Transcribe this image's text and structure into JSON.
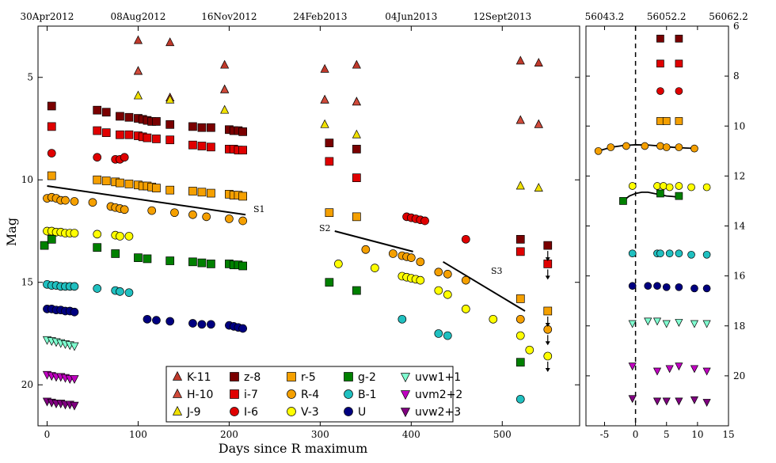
{
  "chart_data": [
    {
      "type": "scatter",
      "panel": "main",
      "title": "",
      "xlabel": "Days since R maximum",
      "ylabel": "Mag",
      "xlim": [
        -10,
        585
      ],
      "ylim": [
        22,
        2.5
      ],
      "y_inverted": true,
      "grid": false,
      "x_ticks": [
        0,
        100,
        200,
        300,
        400,
        500
      ],
      "y_ticks": [
        5,
        10,
        15,
        20
      ],
      "top_date_ticks": [
        {
          "x": 0,
          "label": "30Apr2012"
        },
        {
          "x": 100,
          "label": "08Aug2012"
        },
        {
          "x": 200,
          "label": "16Nov2012"
        },
        {
          "x": 300,
          "label": "24Feb2013"
        },
        {
          "x": 400,
          "label": "04Jun2013"
        },
        {
          "x": 500,
          "label": "12Sept2013"
        }
      ],
      "fit_lines": [
        {
          "name": "S1",
          "x": [
            0,
            218
          ],
          "y": [
            10.3,
            11.7
          ]
        },
        {
          "name": "S2",
          "x": [
            316,
            402
          ],
          "y": [
            12.5,
            13.5
          ]
        },
        {
          "name": "S3",
          "x": [
            435,
            525
          ],
          "y": [
            14.0,
            16.4
          ]
        }
      ],
      "series": [
        {
          "name": "K-11",
          "marker": "triangle-up",
          "color": "#c0392b",
          "x": [
            100,
            100,
            135,
            135,
            195,
            195,
            305,
            305,
            340,
            340,
            520,
            520,
            540,
            540
          ],
          "y": [
            3.2,
            4.7,
            3.3,
            6.0,
            4.4,
            5.6,
            4.6,
            6.1,
            4.4,
            6.2,
            4.2,
            7.1,
            4.3,
            7.3
          ]
        },
        {
          "name": "H-10",
          "marker": "triangle-up",
          "color": "#d04a3a",
          "x": [
            100,
            135,
            195,
            305,
            340,
            520,
            540
          ],
          "y": [
            4.7,
            6.0,
            5.6,
            6.1,
            6.2,
            7.1,
            7.3
          ]
        },
        {
          "name": "J-9",
          "marker": "triangle-up",
          "color": "#f0e000",
          "x": [
            100,
            135,
            195,
            305,
            340,
            520,
            540
          ],
          "y": [
            5.9,
            6.1,
            6.6,
            7.3,
            7.8,
            10.3,
            10.4
          ]
        },
        {
          "name": "z-8",
          "marker": "square",
          "color": "#7a0000",
          "x": [
            5,
            55,
            65,
            80,
            90,
            100,
            105,
            110,
            115,
            120,
            135,
            160,
            170,
            180,
            200,
            205,
            210,
            215,
            310,
            340,
            520,
            550
          ],
          "y": [
            6.4,
            6.6,
            6.7,
            6.9,
            6.95,
            7.0,
            7.05,
            7.1,
            7.15,
            7.15,
            7.3,
            7.4,
            7.45,
            7.45,
            7.55,
            7.6,
            7.6,
            7.65,
            8.2,
            8.5,
            12.9,
            13.2
          ]
        },
        {
          "name": "i-7",
          "marker": "square",
          "color": "#e00000",
          "x": [
            5,
            55,
            65,
            80,
            90,
            100,
            105,
            110,
            120,
            135,
            160,
            170,
            180,
            200,
            205,
            210,
            215,
            310,
            340,
            520,
            550
          ],
          "y": [
            7.4,
            7.6,
            7.7,
            7.8,
            7.8,
            7.85,
            7.9,
            7.95,
            8.0,
            8.05,
            8.3,
            8.35,
            8.4,
            8.5,
            8.5,
            8.55,
            8.55,
            9.1,
            9.9,
            13.5,
            14.1
          ]
        },
        {
          "name": "I-6",
          "marker": "circle",
          "color": "#e00000",
          "x": [
            5,
            55,
            75,
            80,
            85,
            395,
            400,
            405,
            410,
            415,
            460
          ],
          "y": [
            8.7,
            8.9,
            9.0,
            9.0,
            8.9,
            11.8,
            11.85,
            11.9,
            11.95,
            12.0,
            12.9
          ]
        },
        {
          "name": "r-5",
          "marker": "square",
          "color": "#f5a000",
          "x": [
            5,
            55,
            65,
            75,
            80,
            90,
            100,
            105,
            110,
            115,
            120,
            135,
            160,
            170,
            180,
            200,
            205,
            210,
            215,
            310,
            340,
            520,
            550
          ],
          "y": [
            9.8,
            10.0,
            10.05,
            10.1,
            10.15,
            10.2,
            10.25,
            10.3,
            10.3,
            10.35,
            10.4,
            10.5,
            10.55,
            10.6,
            10.65,
            10.7,
            10.75,
            10.75,
            10.8,
            11.6,
            11.8,
            15.8,
            16.4
          ]
        },
        {
          "name": "R-4",
          "marker": "circle",
          "color": "#f5a000",
          "x": [
            0,
            5,
            10,
            15,
            20,
            30,
            50,
            70,
            75,
            80,
            85,
            115,
            140,
            160,
            175,
            200,
            215,
            350,
            380,
            390,
            395,
            400,
            410,
            430,
            440,
            460,
            520,
            550
          ],
          "y": [
            10.9,
            10.85,
            10.9,
            11.0,
            11.0,
            11.05,
            11.1,
            11.3,
            11.35,
            11.4,
            11.45,
            11.5,
            11.6,
            11.7,
            11.8,
            11.9,
            12.0,
            13.4,
            13.6,
            13.7,
            13.75,
            13.8,
            14.0,
            14.5,
            14.6,
            14.9,
            16.8,
            17.3
          ]
        },
        {
          "name": "V-3",
          "marker": "circle",
          "color": "#ffff00",
          "x": [
            0,
            5,
            10,
            15,
            20,
            25,
            30,
            55,
            75,
            80,
            90,
            320,
            360,
            390,
            395,
            400,
            405,
            410,
            430,
            440,
            460,
            490,
            520,
            530,
            550
          ],
          "y": [
            12.5,
            12.5,
            12.55,
            12.55,
            12.6,
            12.6,
            12.6,
            12.65,
            12.7,
            12.75,
            12.75,
            14.1,
            14.3,
            14.7,
            14.75,
            14.8,
            14.85,
            14.9,
            15.4,
            15.6,
            16.3,
            16.8,
            17.6,
            18.3,
            18.6
          ]
        },
        {
          "name": "g-2",
          "marker": "square",
          "color": "#008000",
          "x": [
            -3,
            5,
            55,
            75,
            100,
            110,
            135,
            160,
            170,
            180,
            200,
            205,
            210,
            215,
            310,
            340,
            520
          ],
          "y": [
            13.2,
            12.9,
            13.3,
            13.6,
            13.8,
            13.85,
            13.95,
            14.0,
            14.05,
            14.1,
            14.1,
            14.15,
            14.15,
            14.2,
            15.0,
            15.4,
            18.9
          ]
        },
        {
          "name": "B-1",
          "marker": "circle",
          "color": "#20c0c0",
          "x": [
            0,
            5,
            10,
            15,
            20,
            25,
            30,
            55,
            75,
            80,
            90,
            390,
            430,
            440,
            520
          ],
          "y": [
            15.1,
            15.15,
            15.15,
            15.2,
            15.2,
            15.2,
            15.2,
            15.3,
            15.4,
            15.45,
            15.5,
            16.8,
            17.5,
            17.6,
            20.7
          ]
        },
        {
          "name": "U",
          "marker": "circle",
          "color": "#000080",
          "x": [
            0,
            5,
            10,
            15,
            20,
            25,
            30,
            110,
            120,
            135,
            160,
            170,
            180,
            200,
            205,
            210,
            215
          ],
          "y": [
            16.3,
            16.3,
            16.35,
            16.35,
            16.4,
            16.4,
            16.45,
            16.8,
            16.85,
            16.9,
            17.0,
            17.05,
            17.05,
            17.1,
            17.15,
            17.2,
            17.25
          ]
        },
        {
          "name": "uvw1+1",
          "marker": "triangle-down",
          "color": "#80ffd0",
          "x": [
            0,
            5,
            10,
            15,
            20,
            25,
            30
          ],
          "y": [
            17.8,
            17.85,
            17.9,
            17.95,
            18.0,
            18.05,
            18.1
          ]
        },
        {
          "name": "uvm2+2",
          "marker": "triangle-down",
          "color": "#c000c0",
          "x": [
            0,
            5,
            10,
            15,
            20,
            25,
            30
          ],
          "y": [
            19.5,
            19.55,
            19.6,
            19.6,
            19.65,
            19.7,
            19.7
          ]
        },
        {
          "name": "uvw2+3",
          "marker": "triangle-down",
          "color": "#800080",
          "x": [
            0,
            5,
            10,
            15,
            20,
            25,
            30
          ],
          "y": [
            20.8,
            20.85,
            20.9,
            20.9,
            20.95,
            20.95,
            21.0
          ]
        }
      ],
      "upper_limits": [
        {
          "series": "z-8",
          "x": 550,
          "y": 13.2
        },
        {
          "series": "i-7",
          "x": 550,
          "y": 14.1
        },
        {
          "series": "r-5",
          "x": 550,
          "y": 16.4
        },
        {
          "series": "R-4",
          "x": 550,
          "y": 17.3
        },
        {
          "series": "V-3",
          "x": 550,
          "y": 18.6
        }
      ],
      "annotations": [
        "S1",
        "S2",
        "S3"
      ]
    },
    {
      "type": "scatter",
      "panel": "inset",
      "xlim": [
        -8,
        15
      ],
      "ylim": [
        22,
        6
      ],
      "y_inverted": true,
      "x_ticks": [
        -5,
        0,
        5,
        10,
        15
      ],
      "y_ticks_right": [
        6,
        8,
        10,
        12,
        14,
        16,
        18,
        20
      ],
      "top_ticks": [
        {
          "x": -5,
          "label": "56043.2"
        },
        {
          "x": 5,
          "label": "56052.2"
        },
        {
          "x": 15,
          "label": "56062.2"
        }
      ],
      "vline_x": 0,
      "curves": [
        {
          "name": "R fit",
          "x": [
            -6,
            -4,
            -2,
            0,
            2,
            4,
            6,
            8,
            10
          ],
          "y": [
            11.0,
            10.85,
            10.78,
            10.75,
            10.76,
            10.8,
            10.85,
            10.88,
            10.9
          ]
        },
        {
          "name": "g fit",
          "x": [
            -2,
            -1.5,
            -1,
            0,
            1,
            2,
            3,
            4,
            5,
            6,
            7
          ],
          "y": [
            13.1,
            12.9,
            12.8,
            12.7,
            12.65,
            12.65,
            12.7,
            12.75,
            12.8,
            12.82,
            12.85
          ]
        }
      ],
      "series": [
        {
          "name": "z-8",
          "marker": "square",
          "color": "#7a0000",
          "x": [
            4,
            7
          ],
          "y": [
            6.5,
            6.5
          ]
        },
        {
          "name": "i-7",
          "marker": "square",
          "color": "#e00000",
          "x": [
            4,
            7
          ],
          "y": [
            7.5,
            7.5
          ]
        },
        {
          "name": "I-6",
          "marker": "circle",
          "color": "#e00000",
          "x": [
            4,
            7
          ],
          "y": [
            8.6,
            8.6
          ]
        },
        {
          "name": "r-5",
          "marker": "square",
          "color": "#f5a000",
          "x": [
            4,
            5,
            7
          ],
          "y": [
            9.8,
            9.8,
            9.8
          ]
        },
        {
          "name": "R-4",
          "marker": "circle",
          "color": "#f5a000",
          "x": [
            -6,
            -4,
            -1.5,
            1.5,
            4,
            5,
            7,
            9.5
          ],
          "y": [
            11.0,
            10.85,
            10.8,
            10.8,
            10.8,
            10.85,
            10.85,
            10.9
          ]
        },
        {
          "name": "V-3",
          "marker": "circle",
          "color": "#ffff00",
          "x": [
            -0.5,
            3.5,
            4.5,
            5.5,
            7,
            9,
            11.5
          ],
          "y": [
            12.4,
            12.4,
            12.4,
            12.45,
            12.4,
            12.45,
            12.45
          ]
        },
        {
          "name": "g-2",
          "marker": "square",
          "color": "#008000",
          "x": [
            -2,
            4,
            7
          ],
          "y": [
            13.0,
            12.7,
            12.8
          ]
        },
        {
          "name": "B-1",
          "marker": "circle",
          "color": "#20c0c0",
          "x": [
            -0.5,
            3.5,
            4,
            5.5,
            7,
            9,
            11.5
          ],
          "y": [
            15.1,
            15.1,
            15.1,
            15.1,
            15.1,
            15.15,
            15.15
          ]
        },
        {
          "name": "U",
          "marker": "circle",
          "color": "#000080",
          "x": [
            -0.5,
            2,
            3.5,
            5,
            7,
            9.5,
            11.5
          ],
          "y": [
            16.4,
            16.4,
            16.4,
            16.45,
            16.45,
            16.5,
            16.5
          ]
        },
        {
          "name": "uvw1+1",
          "marker": "triangle-down",
          "color": "#80ffd0",
          "x": [
            -0.5,
            2,
            3.5,
            5,
            7,
            9.5,
            11.5
          ],
          "y": [
            17.9,
            17.8,
            17.8,
            17.9,
            17.85,
            17.9,
            17.9
          ]
        },
        {
          "name": "uvm2+2",
          "marker": "triangle-down",
          "color": "#c000c0",
          "x": [
            -0.5,
            3.5,
            5.5,
            7,
            9.5,
            11.5
          ],
          "y": [
            19.6,
            19.8,
            19.7,
            19.6,
            19.7,
            19.8
          ]
        },
        {
          "name": "uvw2+3",
          "marker": "triangle-down",
          "color": "#800080",
          "x": [
            -0.5,
            3.5,
            5,
            7,
            9.5,
            11.5
          ],
          "y": [
            20.9,
            21.0,
            21.0,
            21.0,
            20.95,
            21.05
          ]
        }
      ]
    }
  ],
  "legend": {
    "placement": "bottom-center",
    "entries": [
      {
        "label": "K-11",
        "marker": "triangle-up",
        "color": "#c0392b"
      },
      {
        "label": "z-8",
        "marker": "square",
        "color": "#7a0000"
      },
      {
        "label": "r-5",
        "marker": "square",
        "color": "#f5a000"
      },
      {
        "label": "g-2",
        "marker": "square",
        "color": "#008000"
      },
      {
        "label": "uvw1+1",
        "marker": "triangle-down",
        "color": "#80ffd0"
      },
      {
        "label": "H-10",
        "marker": "triangle-up",
        "color": "#d04a3a"
      },
      {
        "label": "i-7",
        "marker": "square",
        "color": "#e00000"
      },
      {
        "label": "R-4",
        "marker": "circle",
        "color": "#f5a000"
      },
      {
        "label": "B-1",
        "marker": "circle",
        "color": "#20c0c0"
      },
      {
        "label": "uvm2+2",
        "marker": "triangle-down",
        "color": "#c000c0"
      },
      {
        "label": "J-9",
        "marker": "triangle-up",
        "color": "#f0e000"
      },
      {
        "label": "I-6",
        "marker": "circle",
        "color": "#e00000"
      },
      {
        "label": "V-3",
        "marker": "circle",
        "color": "#ffff00"
      },
      {
        "label": "U",
        "marker": "circle",
        "color": "#000080"
      },
      {
        "label": "uvw2+3",
        "marker": "triangle-down",
        "color": "#800080"
      }
    ]
  }
}
